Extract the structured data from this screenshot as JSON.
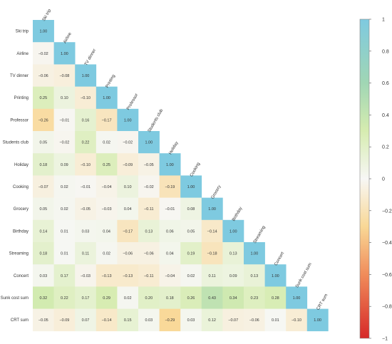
{
  "chart_data": {
    "type": "heatmap",
    "variables": [
      "Ski trip",
      "Airline",
      "TV dinner",
      "Printing",
      "Professor",
      "Students club",
      "Holiday",
      "Cooking",
      "Grocery",
      "Birthday",
      "Streaming",
      "Concert",
      "Sunk cost sum",
      "CRT sum"
    ],
    "matrix": [
      [
        1.0
      ],
      [
        -0.02,
        1.0
      ],
      [
        -0.06,
        -0.08,
        1.0
      ],
      [
        0.25,
        0.1,
        -0.1,
        1.0
      ],
      [
        -0.26,
        -0.01,
        0.16,
        -0.17,
        1.0
      ],
      [
        0.05,
        -0.02,
        0.22,
        0.02,
        -0.02,
        1.0
      ],
      [
        0.18,
        0.09,
        -0.1,
        0.25,
        -0.09,
        -0.05,
        1.0
      ],
      [
        -0.07,
        0.02,
        -0.01,
        -0.04,
        0.1,
        -0.02,
        -0.19,
        1.0
      ],
      [
        0.05,
        0.02,
        -0.05,
        -0.03,
        0.04,
        -0.11,
        -0.01,
        0.08,
        1.0
      ],
      [
        0.14,
        0.01,
        0.03,
        0.04,
        -0.17,
        0.13,
        0.06,
        0.05,
        -0.14,
        1.0
      ],
      [
        0.18,
        0.01,
        0.11,
        0.02,
        -0.06,
        -0.06,
        0.04,
        0.19,
        -0.18,
        0.13,
        1.0
      ],
      [
        0.03,
        0.17,
        -0.03,
        -0.13,
        -0.13,
        -0.11,
        -0.04,
        0.02,
        0.11,
        0.09,
        0.13,
        1.0
      ],
      [
        0.32,
        0.22,
        0.17,
        0.29,
        0.02,
        0.2,
        0.18,
        0.26,
        0.43,
        0.34,
        0.23,
        0.28,
        1.0
      ],
      [
        -0.05,
        -0.09,
        0.07,
        -0.14,
        0.15,
        0.03,
        -0.29,
        0.03,
        0.12,
        -0.07,
        -0.06,
        0.01,
        -0.1,
        1.0
      ]
    ],
    "colorbar": {
      "ticks": [
        "1",
        "0.8",
        "0.6",
        "0.4",
        "0.2",
        "0",
        "−0.2",
        "−0.4",
        "−0.6",
        "−0.8",
        "−1"
      ],
      "values": [
        1,
        0.8,
        0.6,
        0.4,
        0.2,
        0,
        -0.2,
        -0.4,
        -0.6,
        -0.8,
        -1
      ],
      "range": [
        -1,
        1
      ]
    },
    "colors": {
      "strong_positive": "#7ecae0",
      "positive": "#d4ecb0",
      "neutral": "#f7f7f5",
      "negative": "#f9e0a4",
      "strong_negative": "#e6433b"
    }
  }
}
